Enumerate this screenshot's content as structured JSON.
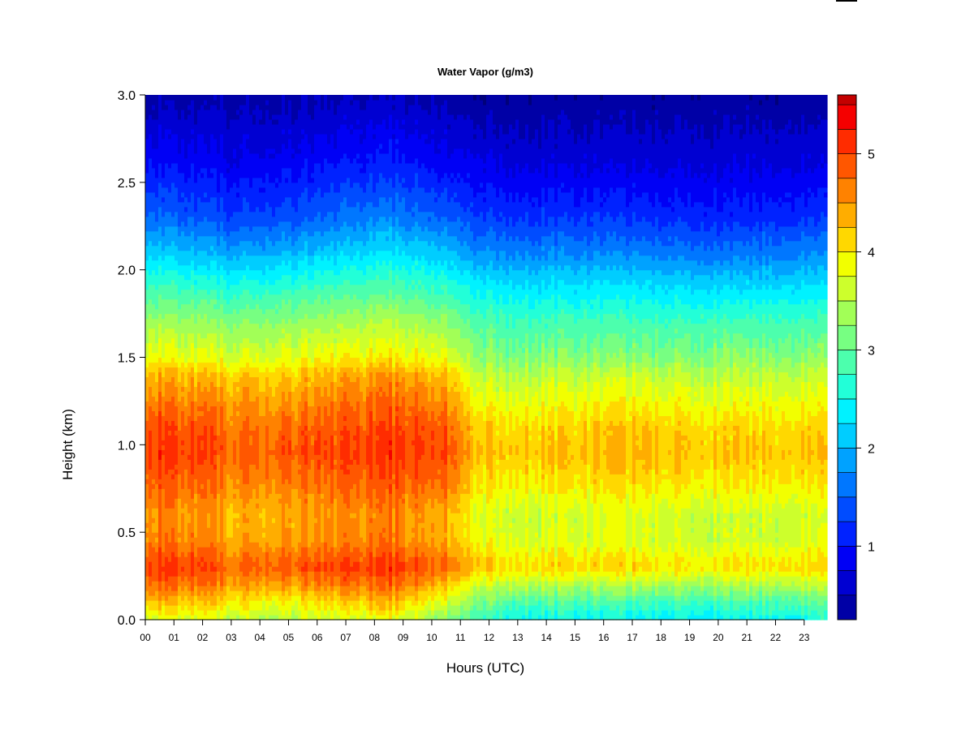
{
  "chart_data": {
    "type": "heatmap",
    "title": "Water Vapor (g/m3)",
    "xlabel": "Hours (UTC)",
    "ylabel": "Height (km)",
    "x_tick_labels": [
      "00",
      "01",
      "02",
      "03",
      "04",
      "05",
      "06",
      "07",
      "08",
      "09",
      "10",
      "11",
      "12",
      "13",
      "14",
      "15",
      "16",
      "17",
      "18",
      "19",
      "20",
      "21",
      "22",
      "23"
    ],
    "y_tick_labels": [
      "0.0",
      "0.5",
      "1.0",
      "1.5",
      "2.0",
      "2.5",
      "3.0"
    ],
    "y_ticks": [
      0.0,
      0.5,
      1.0,
      1.5,
      2.0,
      2.5,
      3.0
    ],
    "xlim": [
      0,
      23.8
    ],
    "ylim": [
      0,
      3.0
    ],
    "colorbar": {
      "ticks": [
        1,
        2,
        3,
        4,
        5
      ],
      "tick_labels": [
        "1",
        "2",
        "3",
        "4",
        "5"
      ],
      "levels": [
        0.25,
        0.5,
        0.75,
        1.0,
        1.25,
        1.5,
        1.75,
        2.0,
        2.25,
        2.5,
        2.75,
        3.0,
        3.25,
        3.5,
        3.75,
        4.0,
        4.25,
        4.5,
        4.75,
        5.0,
        5.25,
        5.5,
        5.6
      ],
      "colors": [
        "#00007a",
        "#0000a6",
        "#0000d2",
        "#0000f5",
        "#0022ff",
        "#004cff",
        "#0077ff",
        "#00a2ff",
        "#00cdff",
        "#00f2ff",
        "#22ffd8",
        "#4cffad",
        "#77ff82",
        "#a2ff57",
        "#cdff2c",
        "#f2ff00",
        "#ffd800",
        "#ffad00",
        "#ff8200",
        "#ff5700",
        "#ff2c00",
        "#f50000",
        "#c40000",
        "#8a0000"
      ]
    },
    "profile_heights_km": [
      0.0,
      0.1,
      0.2,
      0.3,
      0.35,
      0.45,
      0.6,
      0.8,
      0.95,
      1.1,
      1.25,
      1.4,
      1.5,
      1.7,
      1.9,
      2.1,
      2.3,
      2.6,
      3.0
    ],
    "profile_hours": [
      0,
      2,
      3,
      5,
      8.5,
      10.5,
      11.5,
      13,
      17,
      20,
      23.8
    ],
    "profiles": [
      [
        3.8,
        4.3,
        4.8,
        5.1,
        5.0,
        4.7,
        4.6,
        4.9,
        5.1,
        5.0,
        4.7,
        4.4,
        3.9,
        3.4,
        2.8,
        2.2,
        1.6,
        1.0,
        0.4
      ],
      [
        3.7,
        4.2,
        4.7,
        5.0,
        4.9,
        4.6,
        4.5,
        4.8,
        5.0,
        4.9,
        4.6,
        4.3,
        3.8,
        3.3,
        2.7,
        2.0,
        1.4,
        0.9,
        0.4
      ],
      [
        3.6,
        4.0,
        4.5,
        4.8,
        4.7,
        4.4,
        4.3,
        4.6,
        4.8,
        4.7,
        4.5,
        4.2,
        3.7,
        3.2,
        2.6,
        1.9,
        1.3,
        0.8,
        0.4
      ],
      [
        3.5,
        3.9,
        4.5,
        4.9,
        4.8,
        4.5,
        4.4,
        4.7,
        4.9,
        4.8,
        4.5,
        4.2,
        3.8,
        3.3,
        2.7,
        2.0,
        1.4,
        0.9,
        0.4
      ],
      [
        3.8,
        4.3,
        4.8,
        5.1,
        5.0,
        4.7,
        4.6,
        4.9,
        5.1,
        5.0,
        4.8,
        4.5,
        4.0,
        3.5,
        2.9,
        2.3,
        1.7,
        1.1,
        0.5
      ],
      [
        3.2,
        3.7,
        4.3,
        4.8,
        4.7,
        4.4,
        4.4,
        4.8,
        5.0,
        4.9,
        4.6,
        4.3,
        3.8,
        3.3,
        2.7,
        2.1,
        1.5,
        0.9,
        0.4
      ],
      [
        2.8,
        3.2,
        3.7,
        4.3,
        4.2,
        3.9,
        3.8,
        4.1,
        4.3,
        4.2,
        3.9,
        3.6,
        3.3,
        2.9,
        2.4,
        1.8,
        1.3,
        0.8,
        0.3
      ],
      [
        2.5,
        2.9,
        3.5,
        4.1,
        4.0,
        3.7,
        3.6,
        4.0,
        4.2,
        4.1,
        3.8,
        3.5,
        3.2,
        2.8,
        2.3,
        1.7,
        1.2,
        0.7,
        0.3
      ],
      [
        2.4,
        2.8,
        3.4,
        4.1,
        4.0,
        3.7,
        3.7,
        4.1,
        4.3,
        4.2,
        3.9,
        3.6,
        3.2,
        2.8,
        2.3,
        1.7,
        1.2,
        0.7,
        0.3
      ],
      [
        2.4,
        2.8,
        3.4,
        4.0,
        3.9,
        3.6,
        3.6,
        4.0,
        4.2,
        4.1,
        3.8,
        3.5,
        3.2,
        2.8,
        2.2,
        1.6,
        1.1,
        0.7,
        0.3
      ],
      [
        2.5,
        2.9,
        3.5,
        4.1,
        4.0,
        3.7,
        3.6,
        4.0,
        4.2,
        4.1,
        3.8,
        3.5,
        3.2,
        2.8,
        2.3,
        1.7,
        1.2,
        0.7,
        0.3
      ]
    ]
  }
}
